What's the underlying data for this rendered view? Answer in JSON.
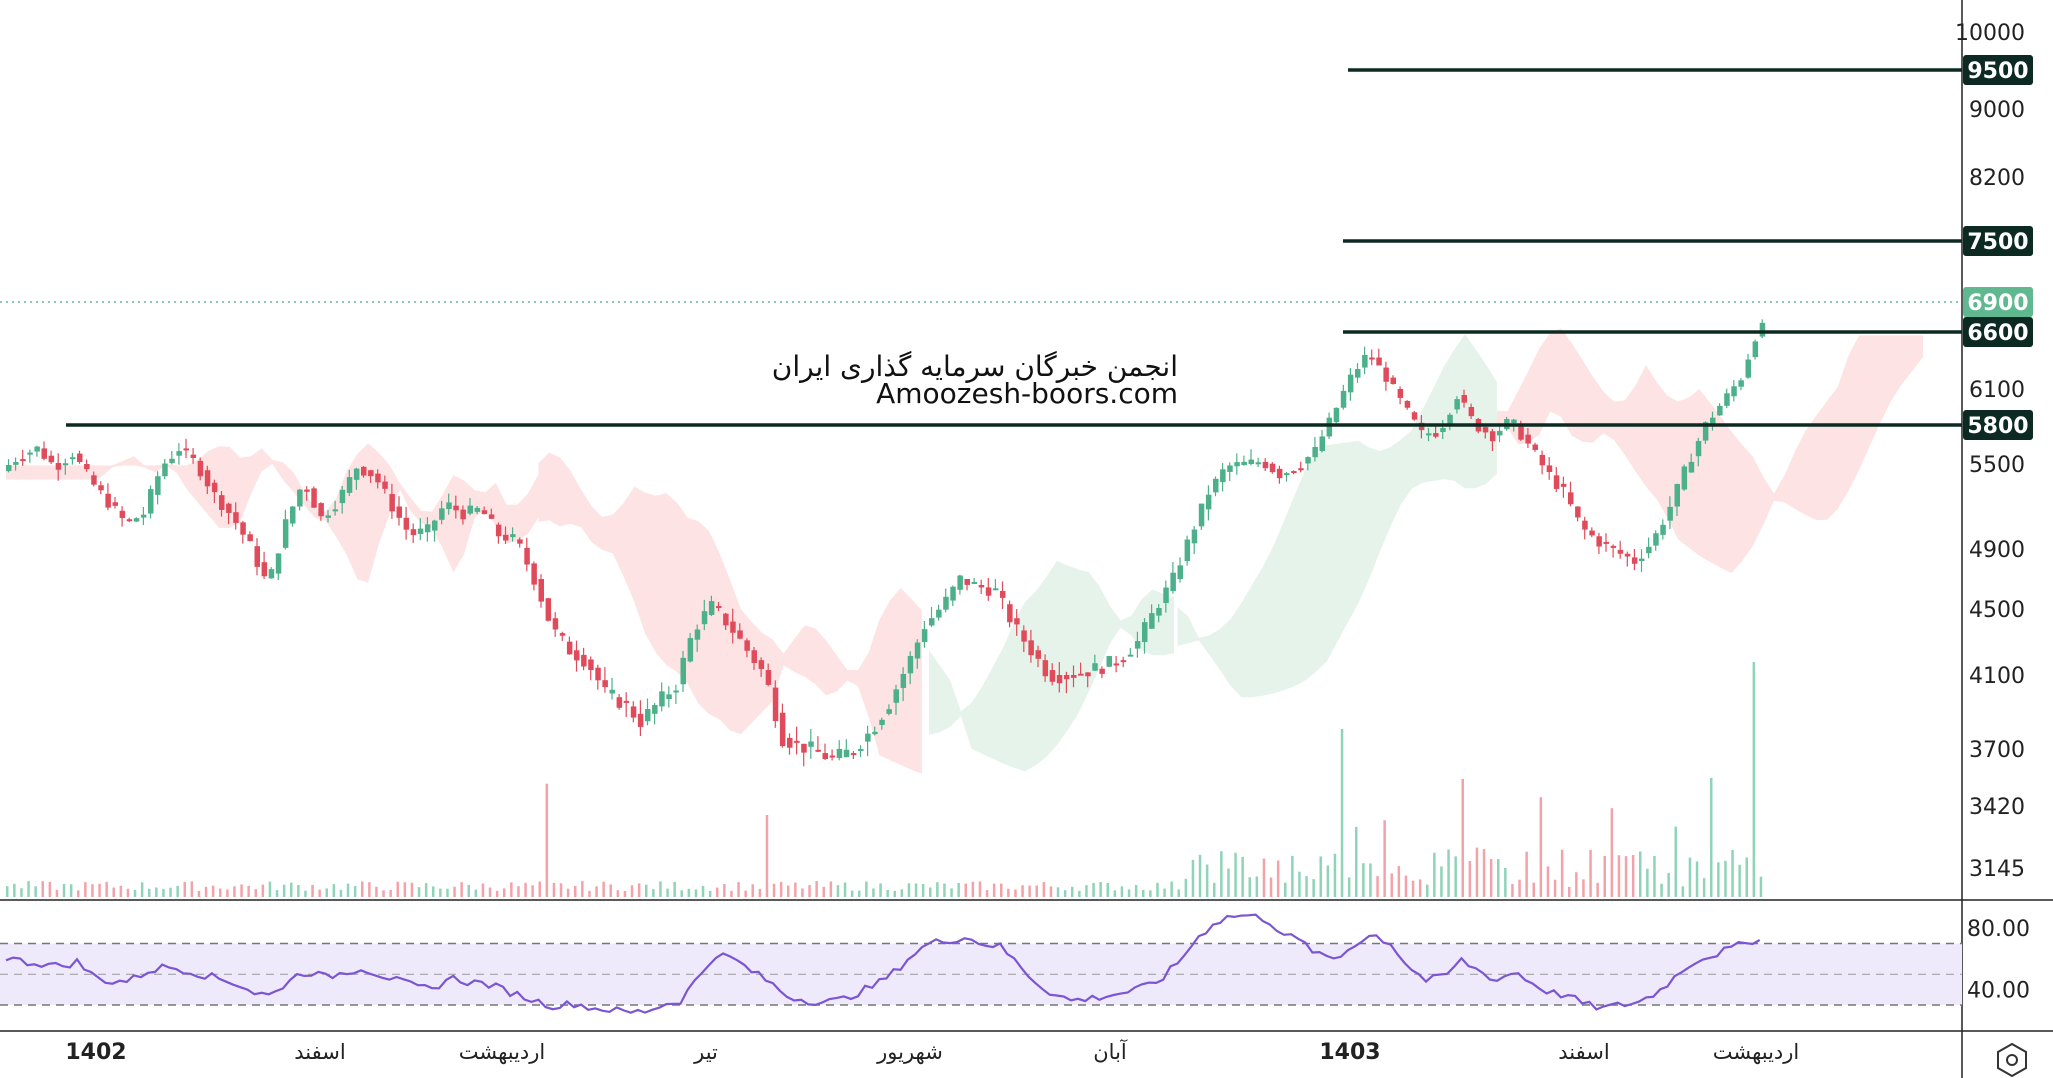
{
  "watermark": {
    "line1": "انجمن خبرگان سرمایه گذاری ایران",
    "line2": "Amoozesh-boors.com"
  },
  "settings_icon": "gear-hexagon-icon",
  "colors": {
    "up": "#4cb08a",
    "down": "#e04b5b",
    "level_line": "#0d2a22",
    "price_tag": "#5fb88f",
    "rsi": "#7b55d3",
    "cloud_up": "#e6f3ea",
    "cloud_down": "#fde3e3"
  },
  "chart_data": {
    "type": "candlestick",
    "price_axis": {
      "ticks": [
        "10000",
        "9000",
        "8200",
        "6100",
        "5500",
        "4900",
        "4500",
        "4100",
        "3700",
        "3420",
        "3145"
      ],
      "ylim": [
        3000,
        10500
      ]
    },
    "level_tags": [
      "9500",
      "7500",
      "6600",
      "5800"
    ],
    "last_price_tag": "6900",
    "levels": [
      {
        "price": 9500,
        "label": "9500"
      },
      {
        "price": 7500,
        "label": "7500"
      },
      {
        "price": 6600,
        "label": "6600"
      },
      {
        "price": 5800,
        "label": "5800"
      }
    ],
    "last_price": 6900,
    "time_axis": [
      {
        "label": "1402",
        "bold": true
      },
      {
        "label": "اسفند",
        "bold": false
      },
      {
        "label": "اردیبهشت",
        "bold": false
      },
      {
        "label": "تیر",
        "bold": false
      },
      {
        "label": "شهریور",
        "bold": false
      },
      {
        "label": "آبان",
        "bold": false
      },
      {
        "label": "1403",
        "bold": true
      },
      {
        "label": "اسفند",
        "bold": false
      },
      {
        "label": "اردیبهشت",
        "bold": false
      }
    ],
    "price_path": [
      [
        0,
        5450
      ],
      [
        5,
        5560
      ],
      [
        10,
        5620
      ],
      [
        15,
        5480
      ],
      [
        20,
        5580
      ],
      [
        25,
        5380
      ],
      [
        30,
        5230
      ],
      [
        35,
        5080
      ],
      [
        40,
        5150
      ],
      [
        45,
        5480
      ],
      [
        50,
        5620
      ],
      [
        55,
        5500
      ],
      [
        60,
        5280
      ],
      [
        65,
        5130
      ],
      [
        70,
        4920
      ],
      [
        75,
        4650
      ],
      [
        80,
        5080
      ],
      [
        85,
        5380
      ],
      [
        90,
        5120
      ],
      [
        95,
        5250
      ],
      [
        100,
        5480
      ],
      [
        105,
        5420
      ],
      [
        110,
        5200
      ],
      [
        115,
        5000
      ],
      [
        120,
        5030
      ],
      [
        125,
        5220
      ],
      [
        130,
        5150
      ],
      [
        135,
        5180
      ],
      [
        140,
        5000
      ],
      [
        145,
        4960
      ],
      [
        150,
        4700
      ],
      [
        155,
        4380
      ],
      [
        160,
        4250
      ],
      [
        165,
        4180
      ],
      [
        170,
        4000
      ],
      [
        175,
        3950
      ],
      [
        180,
        3850
      ],
      [
        185,
        3950
      ],
      [
        190,
        4050
      ],
      [
        195,
        4380
      ],
      [
        200,
        4520
      ],
      [
        205,
        4400
      ],
      [
        210,
        4250
      ],
      [
        215,
        4100
      ],
      [
        220,
        3760
      ],
      [
        225,
        3720
      ],
      [
        230,
        3680
      ],
      [
        235,
        3650
      ],
      [
        240,
        3700
      ],
      [
        245,
        3800
      ],
      [
        250,
        3950
      ],
      [
        255,
        4150
      ],
      [
        260,
        4400
      ],
      [
        265,
        4520
      ],
      [
        270,
        4700
      ],
      [
        275,
        4650
      ],
      [
        280,
        4620
      ],
      [
        285,
        4400
      ],
      [
        290,
        4250
      ],
      [
        295,
        4100
      ],
      [
        300,
        4100
      ],
      [
        305,
        4120
      ],
      [
        310,
        4150
      ],
      [
        315,
        4200
      ],
      [
        320,
        4300
      ],
      [
        325,
        4500
      ],
      [
        330,
        4700
      ],
      [
        335,
        5000
      ],
      [
        340,
        5300
      ],
      [
        345,
        5480
      ],
      [
        350,
        5500
      ],
      [
        355,
        5520
      ],
      [
        360,
        5430
      ],
      [
        365,
        5480
      ],
      [
        370,
        5600
      ],
      [
        375,
        5880
      ],
      [
        380,
        6200
      ],
      [
        385,
        6420
      ],
      [
        390,
        6200
      ],
      [
        395,
        5950
      ],
      [
        400,
        5730
      ],
      [
        405,
        5750
      ],
      [
        410,
        6050
      ],
      [
        415,
        5800
      ],
      [
        420,
        5720
      ],
      [
        425,
        5840
      ],
      [
        430,
        5650
      ],
      [
        435,
        5450
      ],
      [
        440,
        5300
      ],
      [
        445,
        5050
      ],
      [
        450,
        4950
      ],
      [
        455,
        4880
      ],
      [
        460,
        4820
      ],
      [
        465,
        4950
      ],
      [
        470,
        5200
      ],
      [
        475,
        5500
      ],
      [
        480,
        5800
      ],
      [
        485,
        6000
      ],
      [
        490,
        6200
      ],
      [
        495,
        6650
      ]
    ],
    "rsi": {
      "ticks": [
        "80.00",
        "40.00"
      ],
      "band": [
        30,
        70
      ],
      "values": [
        [
          0,
          61
        ],
        [
          5,
          58
        ],
        [
          10,
          57
        ],
        [
          15,
          55
        ],
        [
          20,
          58
        ],
        [
          25,
          48
        ],
        [
          30,
          45
        ],
        [
          35,
          46
        ],
        [
          40,
          52
        ],
        [
          45,
          55
        ],
        [
          50,
          53
        ],
        [
          55,
          50
        ],
        [
          60,
          47
        ],
        [
          65,
          44
        ],
        [
          70,
          38
        ],
        [
          75,
          36
        ],
        [
          80,
          47
        ],
        [
          85,
          52
        ],
        [
          90,
          48
        ],
        [
          95,
          51
        ],
        [
          100,
          54
        ],
        [
          105,
          50
        ],
        [
          110,
          46
        ],
        [
          115,
          42
        ],
        [
          120,
          40
        ],
        [
          125,
          48
        ],
        [
          130,
          45
        ],
        [
          135,
          44
        ],
        [
          140,
          40
        ],
        [
          145,
          36
        ],
        [
          150,
          32
        ],
        [
          155,
          29
        ],
        [
          160,
          31
        ],
        [
          165,
          28
        ],
        [
          170,
          27
        ],
        [
          175,
          25
        ],
        [
          180,
          26
        ],
        [
          185,
          30
        ],
        [
          190,
          33
        ],
        [
          195,
          48
        ],
        [
          200,
          63
        ],
        [
          205,
          60
        ],
        [
          210,
          52
        ],
        [
          215,
          45
        ],
        [
          220,
          36
        ],
        [
          225,
          33
        ],
        [
          230,
          32
        ],
        [
          235,
          33
        ],
        [
          240,
          38
        ],
        [
          245,
          43
        ],
        [
          250,
          51
        ],
        [
          255,
          62
        ],
        [
          260,
          70
        ],
        [
          265,
          72
        ],
        [
          270,
          74
        ],
        [
          275,
          70
        ],
        [
          280,
          68
        ],
        [
          285,
          57
        ],
        [
          290,
          45
        ],
        [
          295,
          37
        ],
        [
          300,
          33
        ],
        [
          305,
          34
        ],
        [
          310,
          36
        ],
        [
          315,
          38
        ],
        [
          320,
          41
        ],
        [
          325,
          46
        ],
        [
          330,
          57
        ],
        [
          335,
          72
        ],
        [
          340,
          83
        ],
        [
          345,
          88
        ],
        [
          350,
          88
        ],
        [
          355,
          86
        ],
        [
          360,
          76
        ],
        [
          365,
          71
        ],
        [
          370,
          62
        ],
        [
          375,
          60
        ],
        [
          380,
          70
        ],
        [
          385,
          76
        ],
        [
          390,
          70
        ],
        [
          395,
          55
        ],
        [
          400,
          46
        ],
        [
          405,
          48
        ],
        [
          410,
          59
        ],
        [
          415,
          52
        ],
        [
          420,
          46
        ],
        [
          425,
          52
        ],
        [
          430,
          44
        ],
        [
          435,
          38
        ],
        [
          440,
          36
        ],
        [
          445,
          30
        ],
        [
          450,
          28
        ],
        [
          455,
          30
        ],
        [
          460,
          32
        ],
        [
          465,
          38
        ],
        [
          470,
          48
        ],
        [
          475,
          58
        ],
        [
          480,
          62
        ],
        [
          485,
          66
        ],
        [
          490,
          70
        ],
        [
          495,
          75
        ]
      ]
    }
  }
}
